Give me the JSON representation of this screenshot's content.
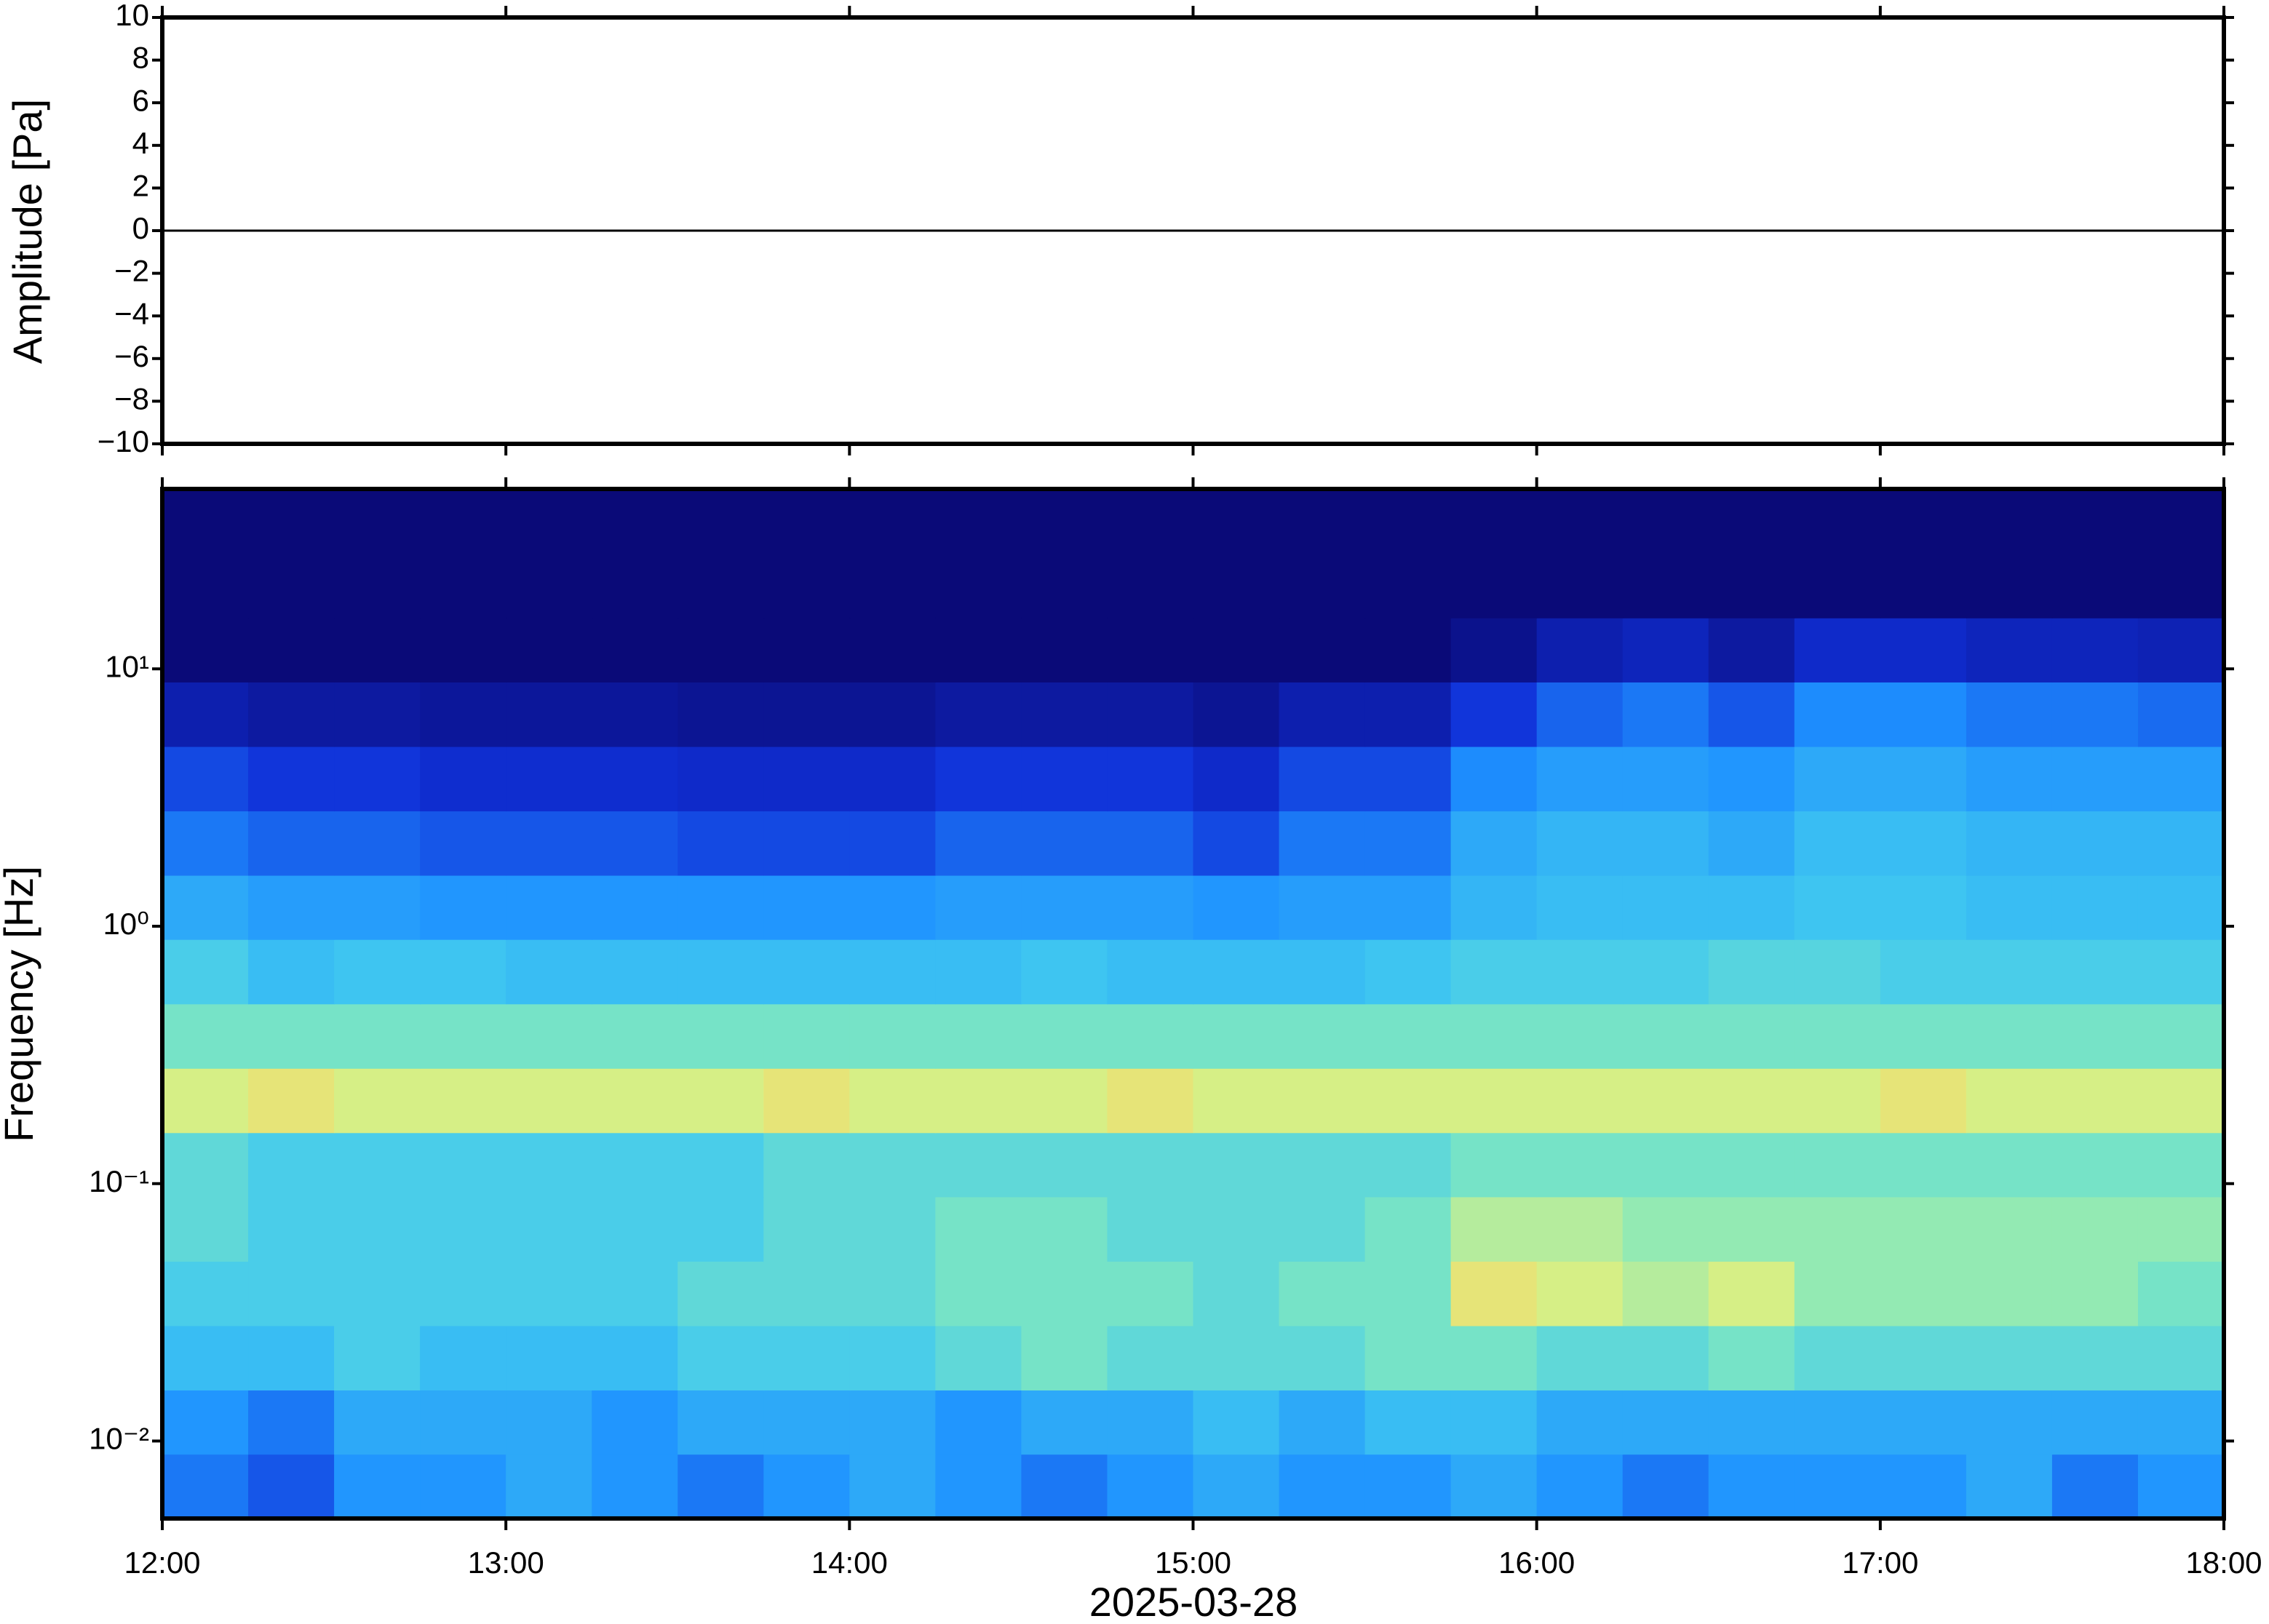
{
  "chart_data": [
    {
      "type": "line",
      "ylabel": "Amplitude [Pa]",
      "x": [
        "12:00",
        "12:30",
        "13:00",
        "13:30",
        "14:00",
        "14:30",
        "15:00",
        "15:30",
        "16:00",
        "16:30",
        "17:00",
        "17:30",
        "18:00"
      ],
      "values": [
        0,
        0,
        0,
        0,
        0,
        0,
        0,
        0,
        0,
        0,
        0,
        0,
        0
      ],
      "color": "#000000",
      "xlim": [
        "12:00",
        "18:00"
      ],
      "ylim": [
        -10,
        10
      ],
      "yticks": [
        {
          "value": -10,
          "label": "−10"
        },
        {
          "value": -8,
          "label": "−8"
        },
        {
          "value": -6,
          "label": "−6"
        },
        {
          "value": -4,
          "label": "−4"
        },
        {
          "value": -2,
          "label": "−2"
        },
        0,
        2,
        4,
        6,
        8,
        10
      ]
    },
    {
      "type": "heatmap",
      "ylabel": "Frequency [Hz]",
      "xlabel": "2025-03-28",
      "log_y": true,
      "xlim": [
        "12:00",
        "18:00"
      ],
      "ylim": [
        0.005,
        50
      ],
      "xticks": [
        "12:00",
        "13:00",
        "14:00",
        "15:00",
        "16:00",
        "17:00",
        "18:00"
      ],
      "yticks": [
        {
          "value": 0.01,
          "label": "10⁻²"
        },
        {
          "value": 0.1,
          "label": "10⁻¹"
        },
        {
          "value": 1,
          "label": "10⁰"
        },
        {
          "value": 10,
          "label": "10¹"
        }
      ],
      "x_bins": [
        "12:00",
        "12:15",
        "12:30",
        "12:45",
        "13:00",
        "13:15",
        "13:30",
        "13:45",
        "14:00",
        "14:15",
        "14:30",
        "14:45",
        "15:00",
        "15:15",
        "15:30",
        "15:45",
        "16:00",
        "16:15",
        "16:30",
        "16:45",
        "17:00",
        "17:15",
        "17:30",
        "17:45",
        "18:00"
      ],
      "y_bins": [
        0.005,
        0.0089,
        0.0158,
        0.0281,
        0.05,
        0.089,
        0.158,
        0.281,
        0.5,
        0.89,
        1.58,
        2.81,
        5,
        8.9,
        15.8,
        28.1,
        50
      ],
      "clim": [
        0,
        10
      ],
      "colormap": [
        "#0a0a78",
        "#1030d8",
        "#1e90ff",
        "#40c8f0",
        "#80e8c0",
        "#e0f080",
        "#f8c060",
        "#e04020"
      ],
      "values": [
        [
          2.5,
          2,
          3,
          3,
          3.5,
          3,
          2.5,
          3,
          3.5,
          3,
          2.5,
          3,
          3.5,
          3,
          3,
          3.5,
          3,
          2.5,
          3,
          3,
          3,
          3.5,
          2.5,
          3
        ],
        [
          3,
          2.5,
          3.5,
          3.5,
          3.5,
          3,
          3.5,
          3.5,
          3.5,
          3,
          3.5,
          3.5,
          4,
          3.5,
          4,
          4,
          3.5,
          3.5,
          3.5,
          3.5,
          3.5,
          3.5,
          3.5,
          3.5
        ],
        [
          4,
          4,
          4.5,
          4,
          4,
          4,
          4.5,
          4.5,
          4.5,
          5,
          5.5,
          5,
          5,
          5,
          5.5,
          5.5,
          5,
          5,
          5.5,
          5,
          5,
          5,
          5,
          5
        ],
        [
          4.5,
          4.5,
          4.5,
          4.5,
          4.5,
          4.5,
          5,
          5,
          5,
          5.5,
          5.5,
          5.5,
          5,
          5.5,
          5.5,
          7.5,
          7,
          6.5,
          7,
          6,
          6,
          6,
          6,
          5.5
        ],
        [
          5,
          4.5,
          4.5,
          4.5,
          4.5,
          4.5,
          4.5,
          5,
          5,
          5.5,
          5.5,
          5,
          5,
          5,
          5.5,
          6.5,
          6.5,
          6,
          6,
          6,
          6,
          6,
          6,
          6
        ],
        [
          5,
          4.5,
          4.5,
          4.5,
          4.5,
          4.5,
          4.5,
          5,
          5,
          5,
          5,
          5,
          5,
          5,
          5,
          5.5,
          5.5,
          5.5,
          5.5,
          5.5,
          5.5,
          5.5,
          5.5,
          5.5
        ],
        [
          7,
          7.5,
          7,
          7,
          7,
          7,
          7,
          7.5,
          7,
          7,
          7,
          7.5,
          7,
          7,
          7,
          7,
          7,
          7,
          7,
          7,
          7.5,
          7,
          7,
          7
        ],
        [
          5.5,
          5.5,
          5.5,
          5.5,
          5.5,
          5.5,
          5.5,
          5.5,
          5.5,
          5.5,
          5.5,
          5.5,
          5.5,
          5.5,
          5.5,
          5.5,
          5.5,
          5.5,
          5.5,
          5.5,
          5.5,
          5.5,
          5.5,
          5.5
        ],
        [
          4.5,
          4,
          4.2,
          4.2,
          4,
          4,
          4,
          4,
          4,
          4,
          4.2,
          4,
          4,
          4,
          4.2,
          4.5,
          4.5,
          4.5,
          4.8,
          4.8,
          4.5,
          4.5,
          4.5,
          4.5
        ],
        [
          3.5,
          3.2,
          3.2,
          3,
          3,
          3,
          3,
          3,
          3,
          3.2,
          3.2,
          3.2,
          3,
          3.2,
          3.2,
          3.8,
          4,
          4,
          4,
          4.2,
          4.2,
          4,
          4,
          4
        ],
        [
          2.5,
          2.2,
          2.2,
          2,
          2,
          2,
          1.8,
          1.8,
          1.8,
          2.2,
          2.2,
          2.2,
          1.8,
          2.5,
          2.5,
          3.5,
          3.8,
          3.8,
          3.5,
          4,
          4,
          3.8,
          3.8,
          3.8
        ],
        [
          1.8,
          1.5,
          1.5,
          1.3,
          1.3,
          1.3,
          1.2,
          1.2,
          1.2,
          1.5,
          1.5,
          1.5,
          1.2,
          1.8,
          1.8,
          2.8,
          3.2,
          3.2,
          3,
          3.5,
          3.5,
          3.2,
          3.2,
          3.2
        ],
        [
          0.8,
          0.6,
          0.6,
          0.5,
          0.5,
          0.5,
          0.4,
          0.4,
          0.4,
          0.6,
          0.6,
          0.6,
          0.4,
          0.8,
          0.8,
          1.5,
          2.2,
          2.5,
          2,
          2.8,
          2.8,
          2.5,
          2.5,
          2.3
        ],
        [
          0,
          0,
          0,
          0,
          0,
          0,
          0,
          0,
          0,
          0,
          0,
          0,
          0,
          0,
          0,
          0.3,
          0.8,
          1,
          0.6,
          1.2,
          1.2,
          1,
          1,
          0.9
        ],
        [
          0,
          0,
          0,
          0,
          0,
          0,
          0,
          0,
          0,
          0,
          0,
          0,
          0,
          0,
          0,
          0,
          0,
          0,
          0,
          0,
          0,
          0,
          0,
          0
        ],
        [
          0,
          0,
          0,
          0,
          0,
          0,
          0,
          0,
          0,
          0,
          0,
          0,
          0,
          0,
          0,
          0,
          0,
          0,
          0,
          0,
          0,
          0,
          0,
          0
        ]
      ]
    }
  ]
}
